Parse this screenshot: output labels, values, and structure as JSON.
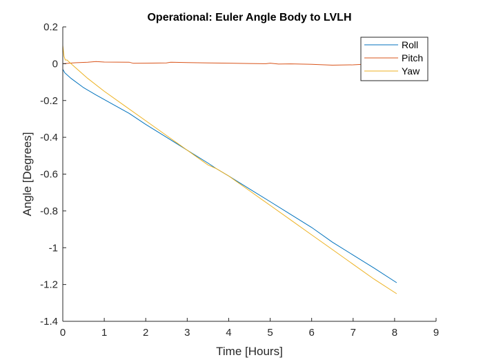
{
  "chart_data": {
    "type": "line",
    "title": "Operational: Euler Angle Body to LVLH",
    "xlabel": "Time [Hours]",
    "ylabel": "Angle [Degrees]",
    "xlim": [
      0,
      9
    ],
    "ylim": [
      -1.4,
      0.2
    ],
    "xticks": [
      0,
      1,
      2,
      3,
      4,
      5,
      6,
      7,
      8,
      9
    ],
    "yticks": [
      0.2,
      0,
      -0.2,
      -0.4,
      -0.6,
      -0.8,
      -1,
      -1.2,
      -1.4
    ],
    "ytick_labels": [
      "0.2",
      "0",
      "-0.2",
      "-0.4",
      "-0.6",
      "-0.8",
      "-1",
      "-1.2",
      "-1.4"
    ],
    "grid": false,
    "legend_position": "top-right",
    "series": [
      {
        "name": "Roll",
        "color": "#0072BD",
        "x": [
          0,
          0.05,
          0.2,
          0.5,
          0.8,
          1.2,
          1.6,
          2.0,
          2.5,
          3.0,
          3.5,
          3.7,
          4.0,
          4.5,
          5.0,
          5.5,
          6.0,
          6.5,
          7.0,
          7.5,
          8.05
        ],
        "y": [
          -0.03,
          -0.05,
          -0.08,
          -0.13,
          -0.17,
          -0.22,
          -0.27,
          -0.33,
          -0.4,
          -0.47,
          -0.54,
          -0.57,
          -0.61,
          -0.68,
          -0.75,
          -0.82,
          -0.89,
          -0.97,
          -1.04,
          -1.11,
          -1.19
        ]
      },
      {
        "name": "Pitch",
        "color": "#D95319",
        "x": [
          0,
          0.3,
          0.6,
          0.8,
          1.0,
          1.6,
          1.7,
          2.0,
          2.5,
          2.6,
          3.0,
          3.5,
          4.0,
          4.5,
          4.9,
          5.0,
          5.2,
          5.5,
          6.0,
          6.5,
          7.0,
          7.5,
          8.05
        ],
        "y": [
          0.0,
          0.005,
          0.008,
          0.012,
          0.009,
          0.008,
          0.002,
          0.003,
          0.004,
          0.008,
          0.006,
          0.004,
          0.003,
          0.001,
          0.0,
          0.003,
          -0.002,
          -0.001,
          -0.003,
          -0.008,
          -0.006,
          0.0,
          0.003
        ]
      },
      {
        "name": "Yaw",
        "color": "#EDB120",
        "x": [
          0,
          0.03,
          0.06,
          0.1,
          0.3,
          0.6,
          1.0,
          1.5,
          2.0,
          2.5,
          3.0,
          3.5,
          3.7,
          4.0,
          4.5,
          5.0,
          5.5,
          6.0,
          6.5,
          7.0,
          7.5,
          8.05
        ],
        "y": [
          0.1,
          0.04,
          0.02,
          0.02,
          -0.02,
          -0.08,
          -0.15,
          -0.23,
          -0.31,
          -0.39,
          -0.47,
          -0.55,
          -0.57,
          -0.61,
          -0.69,
          -0.77,
          -0.85,
          -0.93,
          -1.01,
          -1.09,
          -1.17,
          -1.25
        ]
      }
    ]
  }
}
